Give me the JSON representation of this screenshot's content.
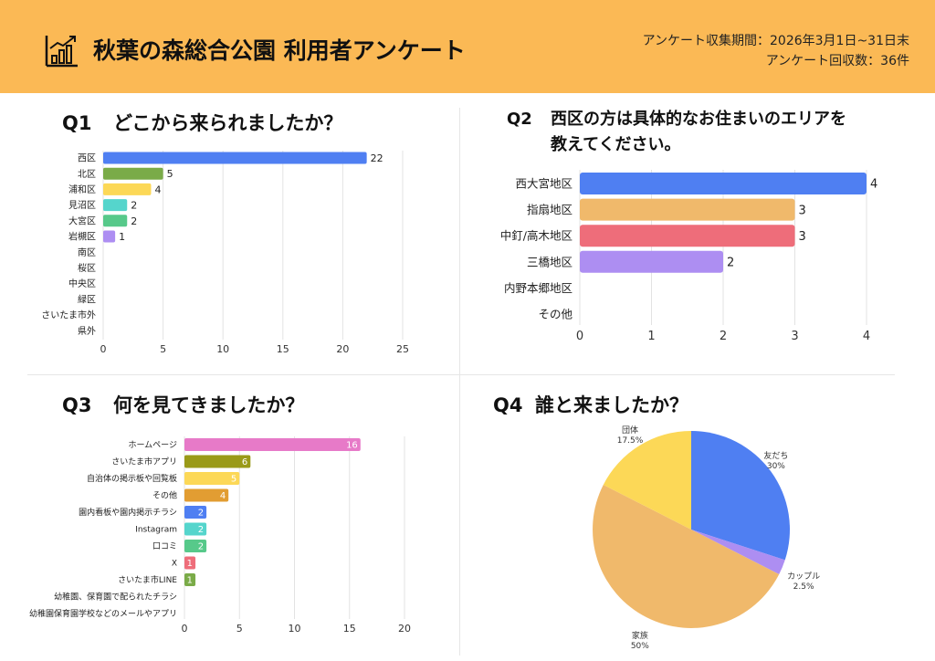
{
  "header": {
    "title": "秋葉の森総合公園 利用者アンケート",
    "period": "アンケート収集期間：2026年3月1日~31日末",
    "count": "アンケート回収数：36件"
  },
  "colors": {
    "header_bg": "#fbb955",
    "blue": "#4f7ff2",
    "green": "#7aab48",
    "yellow": "#fcd857",
    "teal": "#55d5cc",
    "mint": "#57c98a",
    "purple": "#ad8ef2",
    "orange": "#f0b96b",
    "red": "#ee6d7a",
    "pink": "#e77ac8",
    "olive": "#9a9a18",
    "amber": "#e29d32"
  },
  "q1": {
    "num": "Q1",
    "title": "どこから来られましたか？"
  },
  "q2": {
    "num": "Q2",
    "title_line1": "西区の方は具体的なお住まいのエリアを",
    "title_line2": "教えてください。"
  },
  "q3": {
    "num": "Q3",
    "title": "何を見てきましたか？"
  },
  "q4": {
    "num": "Q4",
    "title": "誰と来ましたか？"
  },
  "chart_data": [
    {
      "id": "q1",
      "type": "bar",
      "orientation": "horizontal",
      "categories": [
        "西区",
        "北区",
        "浦和区",
        "見沼区",
        "大宮区",
        "岩槻区",
        "南区",
        "桜区",
        "中央区",
        "緑区",
        "さいたま市外",
        "県外"
      ],
      "values": [
        22,
        5,
        4,
        2,
        2,
        1,
        0,
        0,
        0,
        0,
        0,
        0
      ],
      "bar_colors": [
        "#4f7ff2",
        "#7aab48",
        "#fcd857",
        "#55d5cc",
        "#57c98a",
        "#ad8ef2",
        "#4f7ff2",
        "#4f7ff2",
        "#4f7ff2",
        "#4f7ff2",
        "#4f7ff2",
        "#4f7ff2"
      ],
      "xlim": [
        0,
        25
      ],
      "xticks": [
        0,
        5,
        10,
        15,
        20,
        25
      ],
      "grid": true,
      "data_labels": true
    },
    {
      "id": "q2",
      "type": "bar",
      "orientation": "horizontal",
      "categories": [
        "西大宮地区",
        "指扇地区",
        "中釘/高木地区",
        "三橋地区",
        "内野本郷地区",
        "その他"
      ],
      "values": [
        4,
        3,
        3,
        2,
        0,
        0
      ],
      "bar_colors": [
        "#4f7ff2",
        "#f0b96b",
        "#ee6d7a",
        "#ad8ef2",
        "#4f7ff2",
        "#4f7ff2"
      ],
      "xlim": [
        0,
        4
      ],
      "xticks": [
        0,
        1,
        2,
        3,
        4
      ],
      "grid": true,
      "data_labels": true
    },
    {
      "id": "q3",
      "type": "bar",
      "orientation": "horizontal",
      "categories": [
        "ホームページ",
        "さいたま市アプリ",
        "自治体の掲示板や回覧板",
        "その他",
        "園内看板や園内掲示チラシ",
        "Instagram",
        "口コミ",
        "X",
        "さいたま市LINE",
        "幼稚園、保育園で配られたチラシ",
        "幼稚園保育園学校などのメールやアプリ"
      ],
      "values": [
        16,
        6,
        5,
        4,
        2,
        2,
        2,
        1,
        1,
        0,
        0
      ],
      "bar_colors": [
        "#e77ac8",
        "#9a9a18",
        "#fcd857",
        "#e29d32",
        "#4f7ff2",
        "#55d5cc",
        "#57c98a",
        "#ee6d7a",
        "#7aab48",
        "#4f7ff2",
        "#4f7ff2"
      ],
      "xlim": [
        0,
        20
      ],
      "xticks": [
        0,
        5,
        10,
        15,
        20
      ],
      "grid": true,
      "data_labels": true,
      "data_labels_inside": true
    },
    {
      "id": "q4",
      "type": "pie",
      "labels": [
        "友だち",
        "カップル",
        "家族",
        "団体"
      ],
      "values": [
        30,
        2.5,
        50,
        17.5
      ],
      "pct_labels": [
        "30%",
        "2.5%",
        "50%",
        "17.5%"
      ],
      "colors": [
        "#4f7ff2",
        "#ad8ef2",
        "#f0b96b",
        "#fcd857"
      ]
    }
  ]
}
